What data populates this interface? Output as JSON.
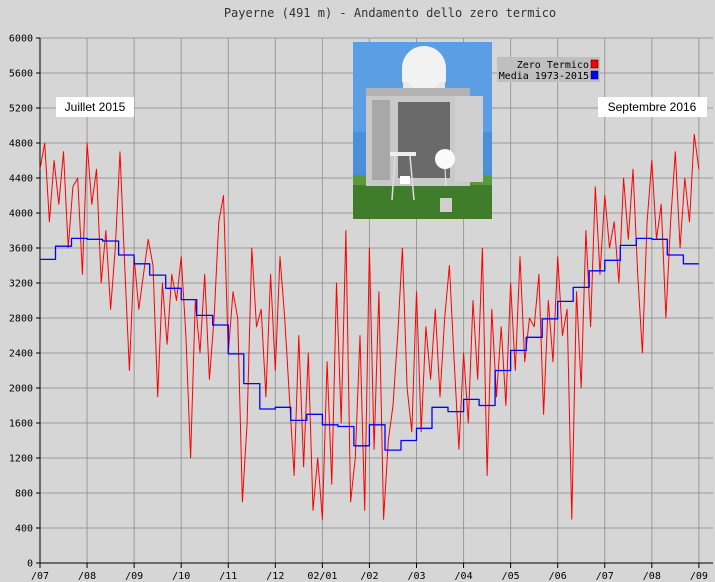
{
  "chart_data": {
    "type": "line",
    "title": "Payerne (491 m) - Andamento dello zero termico",
    "xlabel": "",
    "ylabel": "",
    "ylim": [
      0,
      6000
    ],
    "yticks": [
      0,
      400,
      800,
      1200,
      1600,
      2000,
      2400,
      2800,
      3200,
      3600,
      4000,
      4400,
      4800,
      5200,
      5600,
      6000
    ],
    "xlim": [
      0,
      14.3
    ],
    "xticks": [
      {
        "x": 0,
        "label": "/07"
      },
      {
        "x": 1,
        "label": "/08"
      },
      {
        "x": 2,
        "label": "/09"
      },
      {
        "x": 3,
        "label": "/10"
      },
      {
        "x": 4,
        "label": "/11"
      },
      {
        "x": 5,
        "label": "/12"
      },
      {
        "x": 6,
        "label": "02/01"
      },
      {
        "x": 7,
        "label": "/02"
      },
      {
        "x": 8,
        "label": "/03"
      },
      {
        "x": 9,
        "label": "/04"
      },
      {
        "x": 10,
        "label": "/05"
      },
      {
        "x": 11,
        "label": "/06"
      },
      {
        "x": 12,
        "label": "/07"
      },
      {
        "x": 13,
        "label": "/08"
      },
      {
        "x": 14,
        "label": "/09"
      }
    ],
    "grid": true,
    "legend_position": "top-right",
    "series": [
      {
        "name": "Zero Termico",
        "color": "#ff0000",
        "style": "line",
        "x": [
          0.0,
          0.1,
          0.2,
          0.3,
          0.4,
          0.5,
          0.6,
          0.7,
          0.8,
          0.9,
          1.0,
          1.1,
          1.2,
          1.3,
          1.4,
          1.5,
          1.6,
          1.7,
          1.8,
          1.9,
          2.0,
          2.1,
          2.2,
          2.3,
          2.4,
          2.5,
          2.6,
          2.7,
          2.8,
          2.9,
          3.0,
          3.1,
          3.2,
          3.3,
          3.4,
          3.5,
          3.6,
          3.7,
          3.8,
          3.9,
          4.0,
          4.1,
          4.2,
          4.3,
          4.4,
          4.5,
          4.6,
          4.7,
          4.8,
          4.9,
          5.0,
          5.1,
          5.2,
          5.3,
          5.4,
          5.5,
          5.6,
          5.7,
          5.8,
          5.9,
          6.0,
          6.1,
          6.2,
          6.3,
          6.4,
          6.5,
          6.6,
          6.7,
          6.8,
          6.9,
          7.0,
          7.1,
          7.2,
          7.3,
          7.4,
          7.5,
          7.6,
          7.7,
          7.8,
          7.9,
          8.0,
          8.1,
          8.2,
          8.3,
          8.4,
          8.5,
          8.6,
          8.7,
          8.8,
          8.9,
          9.0,
          9.1,
          9.2,
          9.3,
          9.4,
          9.5,
          9.6,
          9.7,
          9.8,
          9.9,
          10.0,
          10.1,
          10.2,
          10.3,
          10.4,
          10.5,
          10.6,
          10.7,
          10.8,
          10.9,
          11.0,
          11.1,
          11.2,
          11.3,
          11.4,
          11.5,
          11.6,
          11.7,
          11.8,
          11.9,
          12.0,
          12.1,
          12.2,
          12.3,
          12.4,
          12.5,
          12.6,
          12.7,
          12.8,
          12.9,
          13.0,
          13.1,
          13.2,
          13.3,
          13.4,
          13.5,
          13.6,
          13.7,
          13.8,
          13.9,
          14.0
        ],
        "y": [
          4500,
          4800,
          3900,
          4600,
          4100,
          4700,
          3600,
          4300,
          4400,
          3300,
          4800,
          4100,
          4500,
          3200,
          3800,
          2900,
          3600,
          4700,
          3400,
          2200,
          3500,
          2900,
          3300,
          3700,
          3400,
          1900,
          3200,
          2500,
          3300,
          3000,
          3500,
          2600,
          1200,
          3000,
          2400,
          3300,
          2100,
          2800,
          3900,
          4200,
          2400,
          3100,
          2800,
          700,
          1600,
          3600,
          2700,
          2900,
          1900,
          3300,
          2200,
          3500,
          2800,
          1900,
          1000,
          2600,
          1100,
          2400,
          600,
          1200,
          500,
          2300,
          900,
          3200,
          1600,
          3800,
          700,
          1200,
          2600,
          600,
          3600,
          1300,
          3100,
          500,
          1400,
          1800,
          2600,
          3600,
          2000,
          1500,
          3100,
          1500,
          2700,
          2100,
          2900,
          1900,
          2800,
          3400,
          2300,
          1300,
          2400,
          1600,
          3000,
          2100,
          3600,
          1000,
          2900,
          1900,
          2700,
          1800,
          3200,
          2200,
          3500,
          2300,
          2800,
          2700,
          3300,
          1700,
          3000,
          2300,
          3500,
          2600,
          2900,
          500,
          3100,
          2000,
          3800,
          2700,
          4300,
          3300,
          4200,
          3600,
          3900,
          3200,
          4400,
          3700,
          4500,
          3300,
          2400,
          3900,
          4600,
          3700,
          4100,
          2800,
          3900,
          4700,
          3600,
          4400,
          3900,
          4900,
          4500
        ]
      },
      {
        "name": "Media 1973-2015",
        "color": "#0000ff",
        "style": "step",
        "x": [
          0.0,
          0.33,
          0.67,
          1.0,
          1.33,
          1.67,
          2.0,
          2.33,
          2.67,
          3.0,
          3.33,
          3.67,
          4.0,
          4.33,
          4.67,
          5.0,
          5.33,
          5.67,
          6.0,
          6.33,
          6.67,
          7.0,
          7.33,
          7.67,
          8.0,
          8.33,
          8.67,
          9.0,
          9.33,
          9.67,
          10.0,
          10.33,
          10.67,
          11.0,
          11.33,
          11.67,
          12.0,
          12.33,
          12.67,
          13.0,
          13.33,
          13.67,
          14.0
        ],
        "y": [
          3470,
          3620,
          3710,
          3700,
          3680,
          3520,
          3420,
          3290,
          3140,
          3010,
          2830,
          2720,
          2390,
          2050,
          1760,
          1780,
          1630,
          1700,
          1580,
          1560,
          1340,
          1580,
          1290,
          1400,
          1540,
          1780,
          1730,
          1870,
          1800,
          2200,
          2430,
          2580,
          2790,
          2990,
          3150,
          3340,
          3460,
          3630,
          3710,
          3700,
          3520,
          3420,
          3420
        ]
      }
    ],
    "annotations": [
      {
        "text": "Juillet 2015"
      },
      {
        "text": "Septembre 2016"
      }
    ]
  },
  "photo": {
    "description_icon": "weather-station-balloon-photo"
  }
}
